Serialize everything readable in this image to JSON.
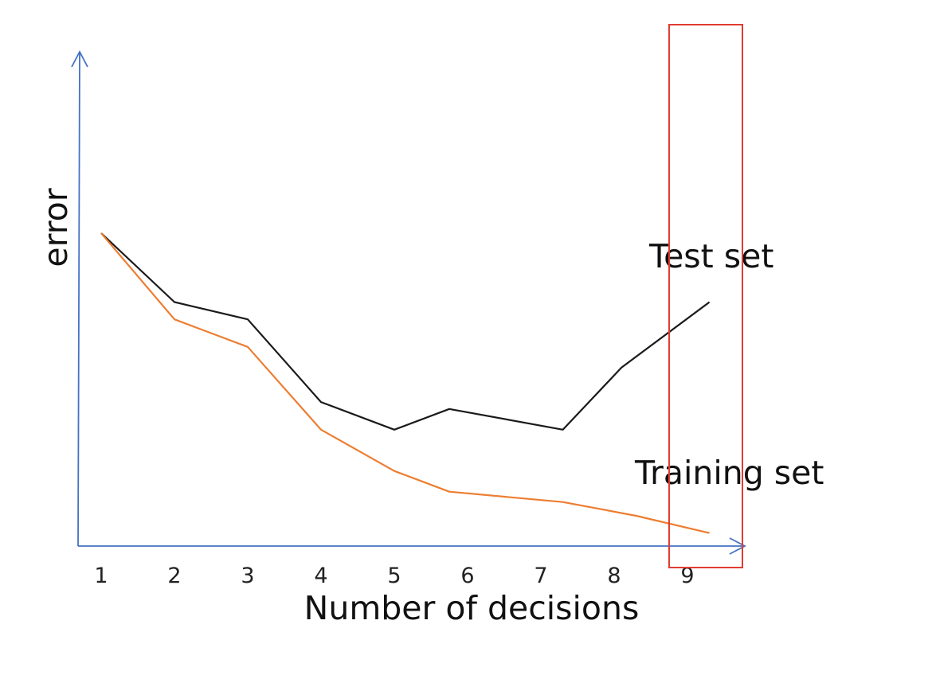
{
  "chart_data": {
    "type": "line",
    "xlabel": "Number of decisions",
    "ylabel": "error",
    "categories": [
      "1",
      "2",
      "3",
      "4",
      "5",
      "6",
      "7",
      "8",
      "9"
    ],
    "ylim": [
      0,
      1
    ],
    "grid": false,
    "series": [
      {
        "name": "Test set",
        "color": "#1a1a1a",
        "points": [
          [
            1,
            0.82
          ],
          [
            2,
            0.62
          ],
          [
            3,
            0.57
          ],
          [
            4,
            0.33
          ],
          [
            5,
            0.25
          ],
          [
            5.75,
            0.31
          ],
          [
            7.3,
            0.25
          ],
          [
            8.1,
            0.43
          ],
          [
            9.3,
            0.62
          ]
        ]
      },
      {
        "name": "Training set",
        "color": "#ed7d31",
        "points": [
          [
            1,
            0.82
          ],
          [
            2,
            0.57
          ],
          [
            3,
            0.49
          ],
          [
            4,
            0.25
          ],
          [
            5,
            0.13
          ],
          [
            5.75,
            0.07
          ],
          [
            7.3,
            0.04
          ],
          [
            8.3,
            0.0
          ],
          [
            9.3,
            -0.05
          ]
        ]
      }
    ],
    "highlight": {
      "x_from": 8.75,
      "x_to": 9.75,
      "color": "#e03c31"
    },
    "axis_color": "#4472c4"
  }
}
